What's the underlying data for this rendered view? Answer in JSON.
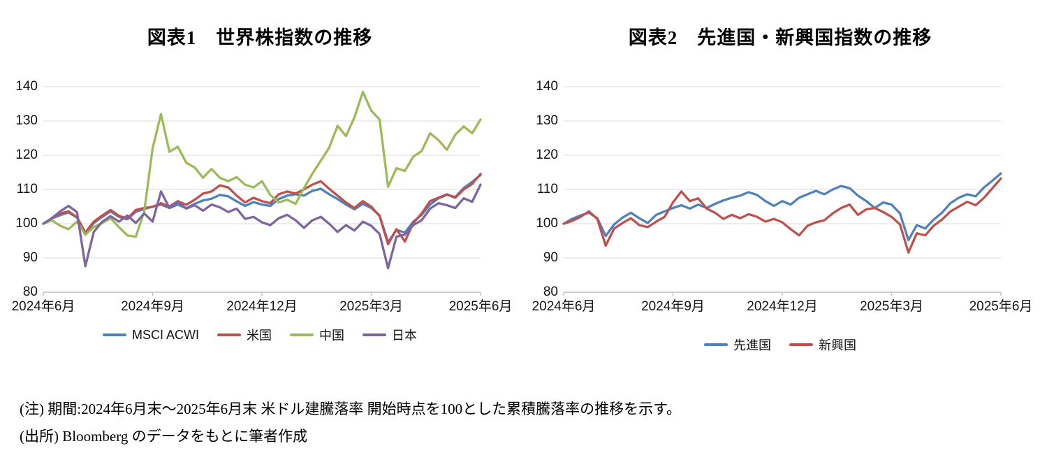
{
  "page": {
    "background": "#ffffff"
  },
  "notes": {
    "line1": "(注) 期間:2024年6月末～2025年6月末 米ドル建騰落率 開始時点を100とした累積騰落率の推移を示す。",
    "line2": "(出所) Bloomberg のデータをもとに筆者作成"
  },
  "chart_data": [
    {
      "type": "line",
      "title": "図表1　世界株指数の推移",
      "xlabel": "",
      "ylabel": "",
      "ylim": [
        80,
        140
      ],
      "yticks": [
        80,
        90,
        100,
        110,
        120,
        130,
        140
      ],
      "x_tick_labels": [
        "2024年6月",
        "2024年9月",
        "2024年12月",
        "2025年3月",
        "2025年6月"
      ],
      "grid": "horizontal",
      "grid_color": "#D9D9D9",
      "axis_color": "#BFBFBF",
      "label_color": "#141414",
      "legend_position": "bottom-center",
      "series": [
        {
          "name": "MSCI ACWI",
          "color": "#4F81BD",
          "values": [
            100,
            101.5,
            102.5,
            103.3,
            101.8,
            96.8,
            100.2,
            102.0,
            103.6,
            102.0,
            101.3,
            103.5,
            104.3,
            105.0,
            105.6,
            104.6,
            105.6,
            104.5,
            105.8,
            106.8,
            107.3,
            108.4,
            108.0,
            106.5,
            105.2,
            106.3,
            105.6,
            105.2,
            107.2,
            108.2,
            108.6,
            108.2,
            109.6,
            110.2,
            108.6,
            107.2,
            105.6,
            104.2,
            105.8,
            104.6,
            102.4,
            94.6,
            98.2,
            97.4,
            100.6,
            102.6,
            105.6,
            107.4,
            108.4,
            107.8,
            110.4,
            112.2,
            114.2
          ]
        },
        {
          "name": "米国",
          "color": "#C0504D",
          "values": [
            100,
            101.6,
            103.0,
            103.6,
            101.9,
            97.4,
            100.6,
            102.4,
            104.0,
            102.3,
            101.5,
            104.0,
            104.6,
            104.9,
            106.0,
            105.0,
            106.6,
            105.5,
            107.0,
            108.8,
            109.4,
            111.2,
            110.6,
            108.2,
            106.2,
            107.6,
            106.6,
            106.0,
            108.6,
            109.4,
            108.8,
            110.0,
            111.4,
            112.4,
            110.2,
            108.2,
            106.2,
            104.6,
            106.6,
            105.0,
            102.2,
            94.0,
            98.4,
            94.8,
            100.2,
            103.0,
            106.6,
            107.6,
            108.6,
            107.6,
            110.0,
            111.6,
            114.5
          ]
        },
        {
          "name": "中国",
          "color": "#9BBB59",
          "values": [
            100,
            101.0,
            99.4,
            98.4,
            100.6,
            96.8,
            99.0,
            100.2,
            101.6,
            99.0,
            96.6,
            96.2,
            103.5,
            122.0,
            132.0,
            121.0,
            122.5,
            117.8,
            116.4,
            113.4,
            116.0,
            113.4,
            112.4,
            113.6,
            111.4,
            110.6,
            112.4,
            108.4,
            106.2,
            107.0,
            105.8,
            110.4,
            114.6,
            118.4,
            122.2,
            128.6,
            125.6,
            131.0,
            138.5,
            133.0,
            130.4,
            110.8,
            116.2,
            115.4,
            119.6,
            121.2,
            126.4,
            124.4,
            121.6,
            126.0,
            128.4,
            126.4,
            130.4
          ]
        },
        {
          "name": "日本",
          "color": "#8064A2",
          "values": [
            100,
            101.6,
            103.6,
            105.2,
            103.4,
            87.6,
            97.6,
            100.6,
            102.2,
            100.6,
            102.4,
            100.2,
            103.0,
            100.6,
            109.4,
            104.6,
            106.4,
            104.4,
            105.4,
            103.8,
            105.6,
            104.8,
            103.4,
            104.4,
            101.4,
            102.0,
            100.4,
            99.6,
            101.6,
            102.6,
            101.0,
            98.8,
            101.0,
            102.0,
            100.0,
            97.6,
            99.6,
            98.0,
            100.6,
            99.4,
            97.0,
            87.0,
            96.2,
            96.8,
            99.6,
            101.0,
            104.4,
            106.0,
            105.4,
            104.6,
            107.4,
            106.4,
            111.4
          ]
        }
      ]
    },
    {
      "type": "line",
      "title": "図表2　先進国・新興国指数の推移",
      "xlabel": "",
      "ylabel": "",
      "ylim": [
        80,
        140
      ],
      "yticks": [
        80,
        90,
        100,
        110,
        120,
        130,
        140
      ],
      "x_tick_labels": [
        "2024年6月",
        "2024年9月",
        "2024年12月",
        "2025年3月",
        "2025年6月"
      ],
      "grid": "horizontal",
      "grid_color": "#D9D9D9",
      "axis_color": "#BFBFBF",
      "label_color": "#141414",
      "legend_position": "bottom-center",
      "series": [
        {
          "name": "先進国",
          "color": "#4F81BD",
          "values": [
            100,
            101.4,
            102.4,
            103.2,
            101.6,
            96.4,
            99.8,
            101.8,
            103.2,
            101.6,
            100.2,
            102.6,
            103.6,
            104.6,
            105.4,
            104.4,
            105.6,
            104.6,
            105.8,
            106.8,
            107.6,
            108.2,
            109.2,
            108.4,
            106.6,
            105.2,
            106.6,
            105.6,
            107.6,
            108.6,
            109.6,
            108.6,
            110.0,
            111.0,
            110.4,
            108.2,
            106.6,
            104.6,
            106.2,
            105.6,
            103.0,
            95.2,
            99.6,
            98.6,
            101.2,
            103.2,
            106.0,
            107.6,
            108.6,
            108.0,
            110.6,
            112.6,
            114.7
          ]
        },
        {
          "name": "新興国",
          "color": "#C0504D",
          "values": [
            100,
            100.8,
            102.0,
            103.6,
            101.4,
            93.6,
            98.6,
            100.2,
            101.6,
            99.6,
            99.0,
            100.6,
            102.0,
            106.2,
            109.4,
            106.6,
            107.4,
            104.4,
            103.2,
            101.4,
            102.6,
            101.6,
            102.8,
            102.0,
            100.6,
            101.4,
            100.4,
            98.4,
            96.6,
            99.4,
            100.4,
            101.0,
            103.0,
            104.6,
            105.6,
            102.6,
            104.2,
            104.6,
            103.4,
            102.0,
            99.8,
            91.6,
            97.2,
            96.6,
            99.4,
            101.2,
            103.6,
            105.0,
            106.4,
            105.4,
            107.6,
            110.4,
            113.2
          ]
        }
      ]
    }
  ]
}
